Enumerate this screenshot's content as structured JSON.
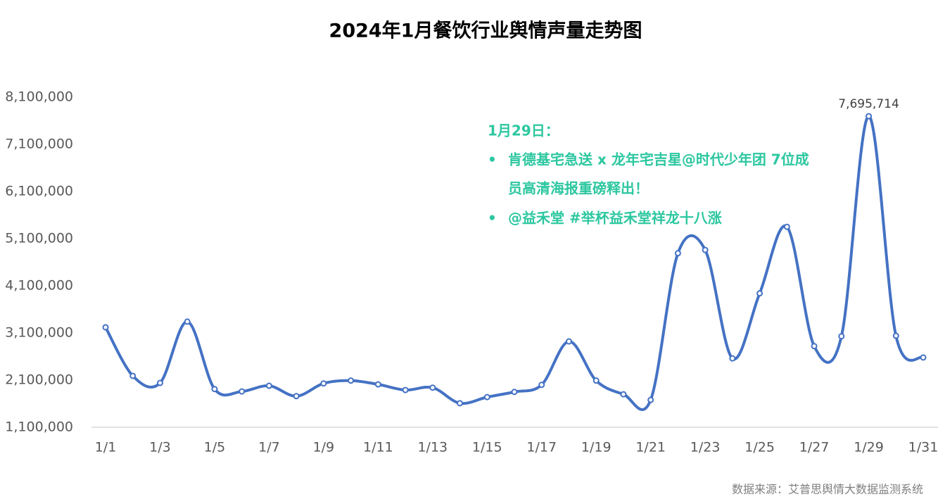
{
  "chart_data": {
    "type": "line",
    "title": "2024年1月餐饮行业舆情声量走势图",
    "categories": [
      "1/1",
      null,
      "1/3",
      null,
      "1/5",
      null,
      "1/7",
      null,
      "1/9",
      null,
      "1/11",
      null,
      "1/13",
      null,
      "1/15",
      null,
      "1/17",
      null,
      "1/19",
      null,
      "1/21",
      null,
      "1/23",
      null,
      "1/25",
      null,
      "1/27",
      null,
      "1/29",
      null,
      "1/31"
    ],
    "series": [
      {
        "name": "舆情声量",
        "color": "#4472c4",
        "values": [
          3220000,
          2190000,
          2040000,
          3340000,
          1910000,
          1860000,
          1980000,
          1760000,
          2030000,
          2090000,
          2010000,
          1890000,
          1940000,
          1610000,
          1740000,
          1850000,
          2000000,
          2920000,
          2090000,
          1800000,
          1680000,
          4790000,
          4860000,
          2560000,
          3940000,
          5350000,
          2820000,
          3030000,
          7695714,
          3040000,
          2580000
        ],
        "value_labels": [
          null,
          null,
          null,
          null,
          null,
          null,
          null,
          null,
          null,
          null,
          null,
          null,
          null,
          null,
          null,
          null,
          null,
          null,
          null,
          null,
          null,
          null,
          null,
          null,
          null,
          null,
          null,
          null,
          "7,695,714",
          null,
          null
        ]
      }
    ],
    "ylim": [
      1100000,
      8100000
    ],
    "yticks": [
      {
        "value": 1100000,
        "label": "1,100,000"
      },
      {
        "value": 2100000,
        "label": "2,100,000"
      },
      {
        "value": 3100000,
        "label": "3,100,000"
      },
      {
        "value": 4100000,
        "label": "4,100,000"
      },
      {
        "value": 5100000,
        "label": "5,100,000"
      },
      {
        "value": 6100000,
        "label": "6,100,000"
      },
      {
        "value": 7100000,
        "label": "7,100,000"
      },
      {
        "value": 8100000,
        "label": "8,100,000"
      }
    ],
    "grid": false,
    "annotation": {
      "title": "1月29日：",
      "bullets": [
        "肯德基宅急送 x 龙年宅吉星@时代少年团 7位成",
        "员高清海报重磅释出！",
        "@益禾堂 #举杯益禾堂祥龙十八涨"
      ]
    },
    "source": "数据来源：艾普思舆情大数据监测系统"
  }
}
